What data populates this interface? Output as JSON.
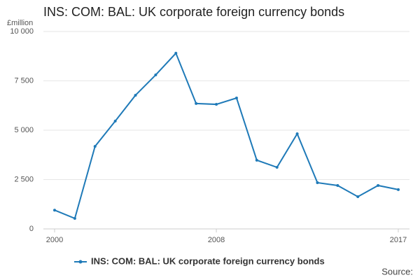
{
  "chart_data": {
    "type": "line",
    "title": "INS: COM: BAL: UK corporate foreign currency bonds",
    "y_label": "£million",
    "source_label": "Source:",
    "x": [
      2000,
      2001,
      2002,
      2003,
      2004,
      2005,
      2006,
      2007,
      2008,
      2009,
      2010,
      2011,
      2012,
      2013,
      2014,
      2015,
      2016,
      2017
    ],
    "series": [
      {
        "name": "INS: COM: BAL: UK corporate foreign currency bonds",
        "color": "#1f7ab8",
        "values": [
          950,
          530,
          4180,
          5460,
          6770,
          7800,
          8900,
          6350,
          6310,
          6630,
          3480,
          3120,
          4820,
          2340,
          2200,
          1630,
          2200,
          1990
        ]
      }
    ],
    "xlim": [
      2000,
      2017
    ],
    "xticks": [
      2000,
      2008,
      2017
    ],
    "ylim": [
      0,
      10000
    ],
    "yticks": [
      0,
      {
        "value": 2500,
        "label": "2 500"
      },
      {
        "value": 5000,
        "label": "5 000"
      },
      {
        "value": 7500,
        "label": "7 500"
      },
      {
        "value": 10000,
        "label": "10 000"
      }
    ],
    "grid": true
  }
}
